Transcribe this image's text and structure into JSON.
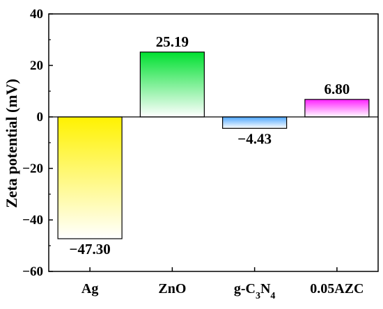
{
  "chart_data": {
    "type": "bar",
    "categories": [
      "Ag",
      "ZnO",
      "g-C3N4",
      "0.05AZC"
    ],
    "category_labels": [
      {
        "base": "Ag",
        "sub1": "",
        "mid": "",
        "sub2": ""
      },
      {
        "base": "ZnO",
        "sub1": "",
        "mid": "",
        "sub2": ""
      },
      {
        "base": "g-C",
        "sub1": "3",
        "mid": "N",
        "sub2": "4"
      },
      {
        "base": "0.05AZC",
        "sub1": "",
        "mid": "",
        "sub2": ""
      }
    ],
    "values": [
      -47.3,
      25.19,
      -4.43,
      6.8
    ],
    "value_labels": [
      "−47.30",
      "25.19",
      "−4.43",
      "6.80"
    ],
    "colors": [
      "#fff200",
      "#00e030",
      "#4da6ff",
      "#ff20ff"
    ],
    "ylabel": "Zeta potential (mV)",
    "xlabel": "",
    "title": "",
    "ylim": [
      -60,
      40
    ],
    "yticks": [
      -60,
      -40,
      -20,
      0,
      20,
      40
    ],
    "ytick_labels": [
      "−60",
      "−40",
      "−20",
      "0",
      "20",
      "40"
    ],
    "grid": false,
    "legend": false
  }
}
